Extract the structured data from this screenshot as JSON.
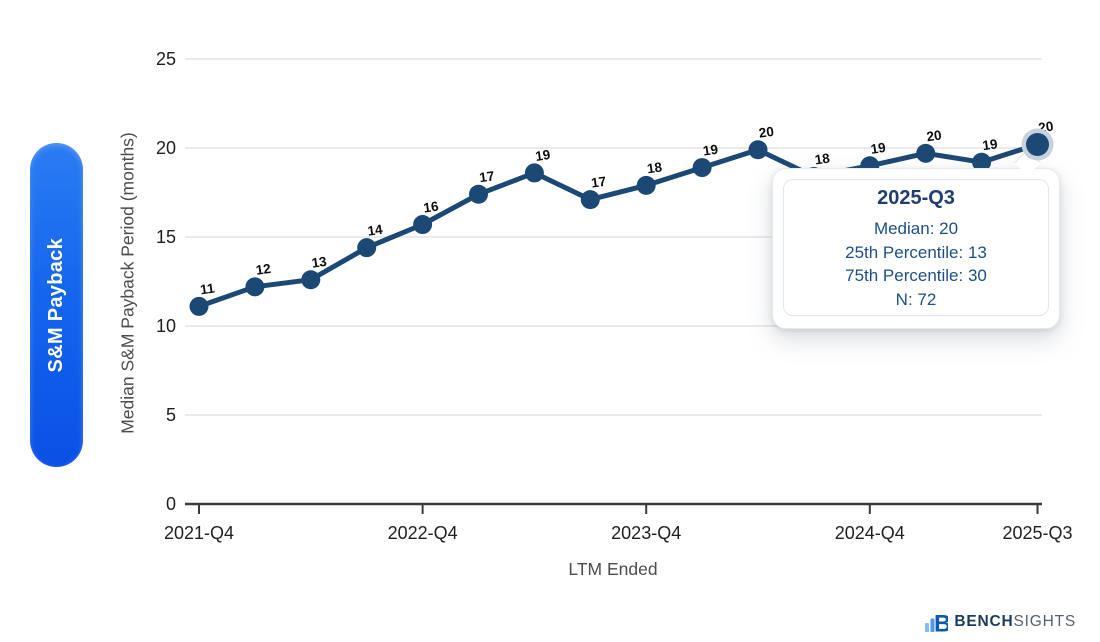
{
  "side_tab": {
    "label": "S&M Payback",
    "gradient_top": "#2b7cf2",
    "gradient_bottom": "#0a50e6",
    "text_color": "#ffffff"
  },
  "chart_data": {
    "type": "line",
    "title": "",
    "xlabel": "LTM Ended",
    "ylabel": "Median S&M Payback Period (months)",
    "x": [
      "2021-Q4",
      "2022-Q1",
      "2022-Q2",
      "2022-Q3",
      "2022-Q4",
      "2023-Q1",
      "2023-Q2",
      "2023-Q3",
      "2023-Q4",
      "2024-Q1",
      "2024-Q2",
      "2024-Q3",
      "2024-Q4",
      "2025-Q1",
      "2025-Q2",
      "2025-Q3"
    ],
    "x_tick_labels": [
      "2021-Q4",
      "2022-Q4",
      "2023-Q4",
      "2024-Q4",
      "2025-Q3"
    ],
    "x_tick_indices": [
      0,
      4,
      8,
      12,
      15
    ],
    "ylim": [
      0,
      25
    ],
    "yticks": [
      0,
      5,
      10,
      15,
      20,
      25
    ],
    "grid": true,
    "legend": "none",
    "series": [
      {
        "name": "Median S&M Payback Period (months)",
        "values": [
          11,
          12,
          13,
          14,
          16,
          17,
          19,
          17,
          18,
          19,
          20,
          18,
          19,
          20,
          19,
          20
        ],
        "plot_values": [
          11.1,
          12.2,
          12.6,
          14.4,
          15.7,
          17.4,
          18.6,
          17.1,
          17.9,
          18.9,
          19.9,
          18.4,
          19.0,
          19.7,
          19.2,
          20.2
        ]
      }
    ],
    "highlight_index": 15,
    "colors": {
      "line": "#1b4875",
      "grid": "#e4e4e4",
      "axis": "#3a3a3a",
      "tick_text": "#212121",
      "label_text": "#0d0d0d",
      "highlight_ring": "#c6d1dc"
    }
  },
  "tooltip": {
    "title": "2025-Q3",
    "lines": [
      "Median: 20",
      "25th Percentile: 13",
      "75th Percentile: 30",
      "N: 72"
    ]
  },
  "logo": {
    "bench": "BENCH",
    "sights": "SIGHTS",
    "icon_color": "#1158b0",
    "bar_color_1": "#8abbee",
    "bar_color_2": "#5598e2"
  }
}
